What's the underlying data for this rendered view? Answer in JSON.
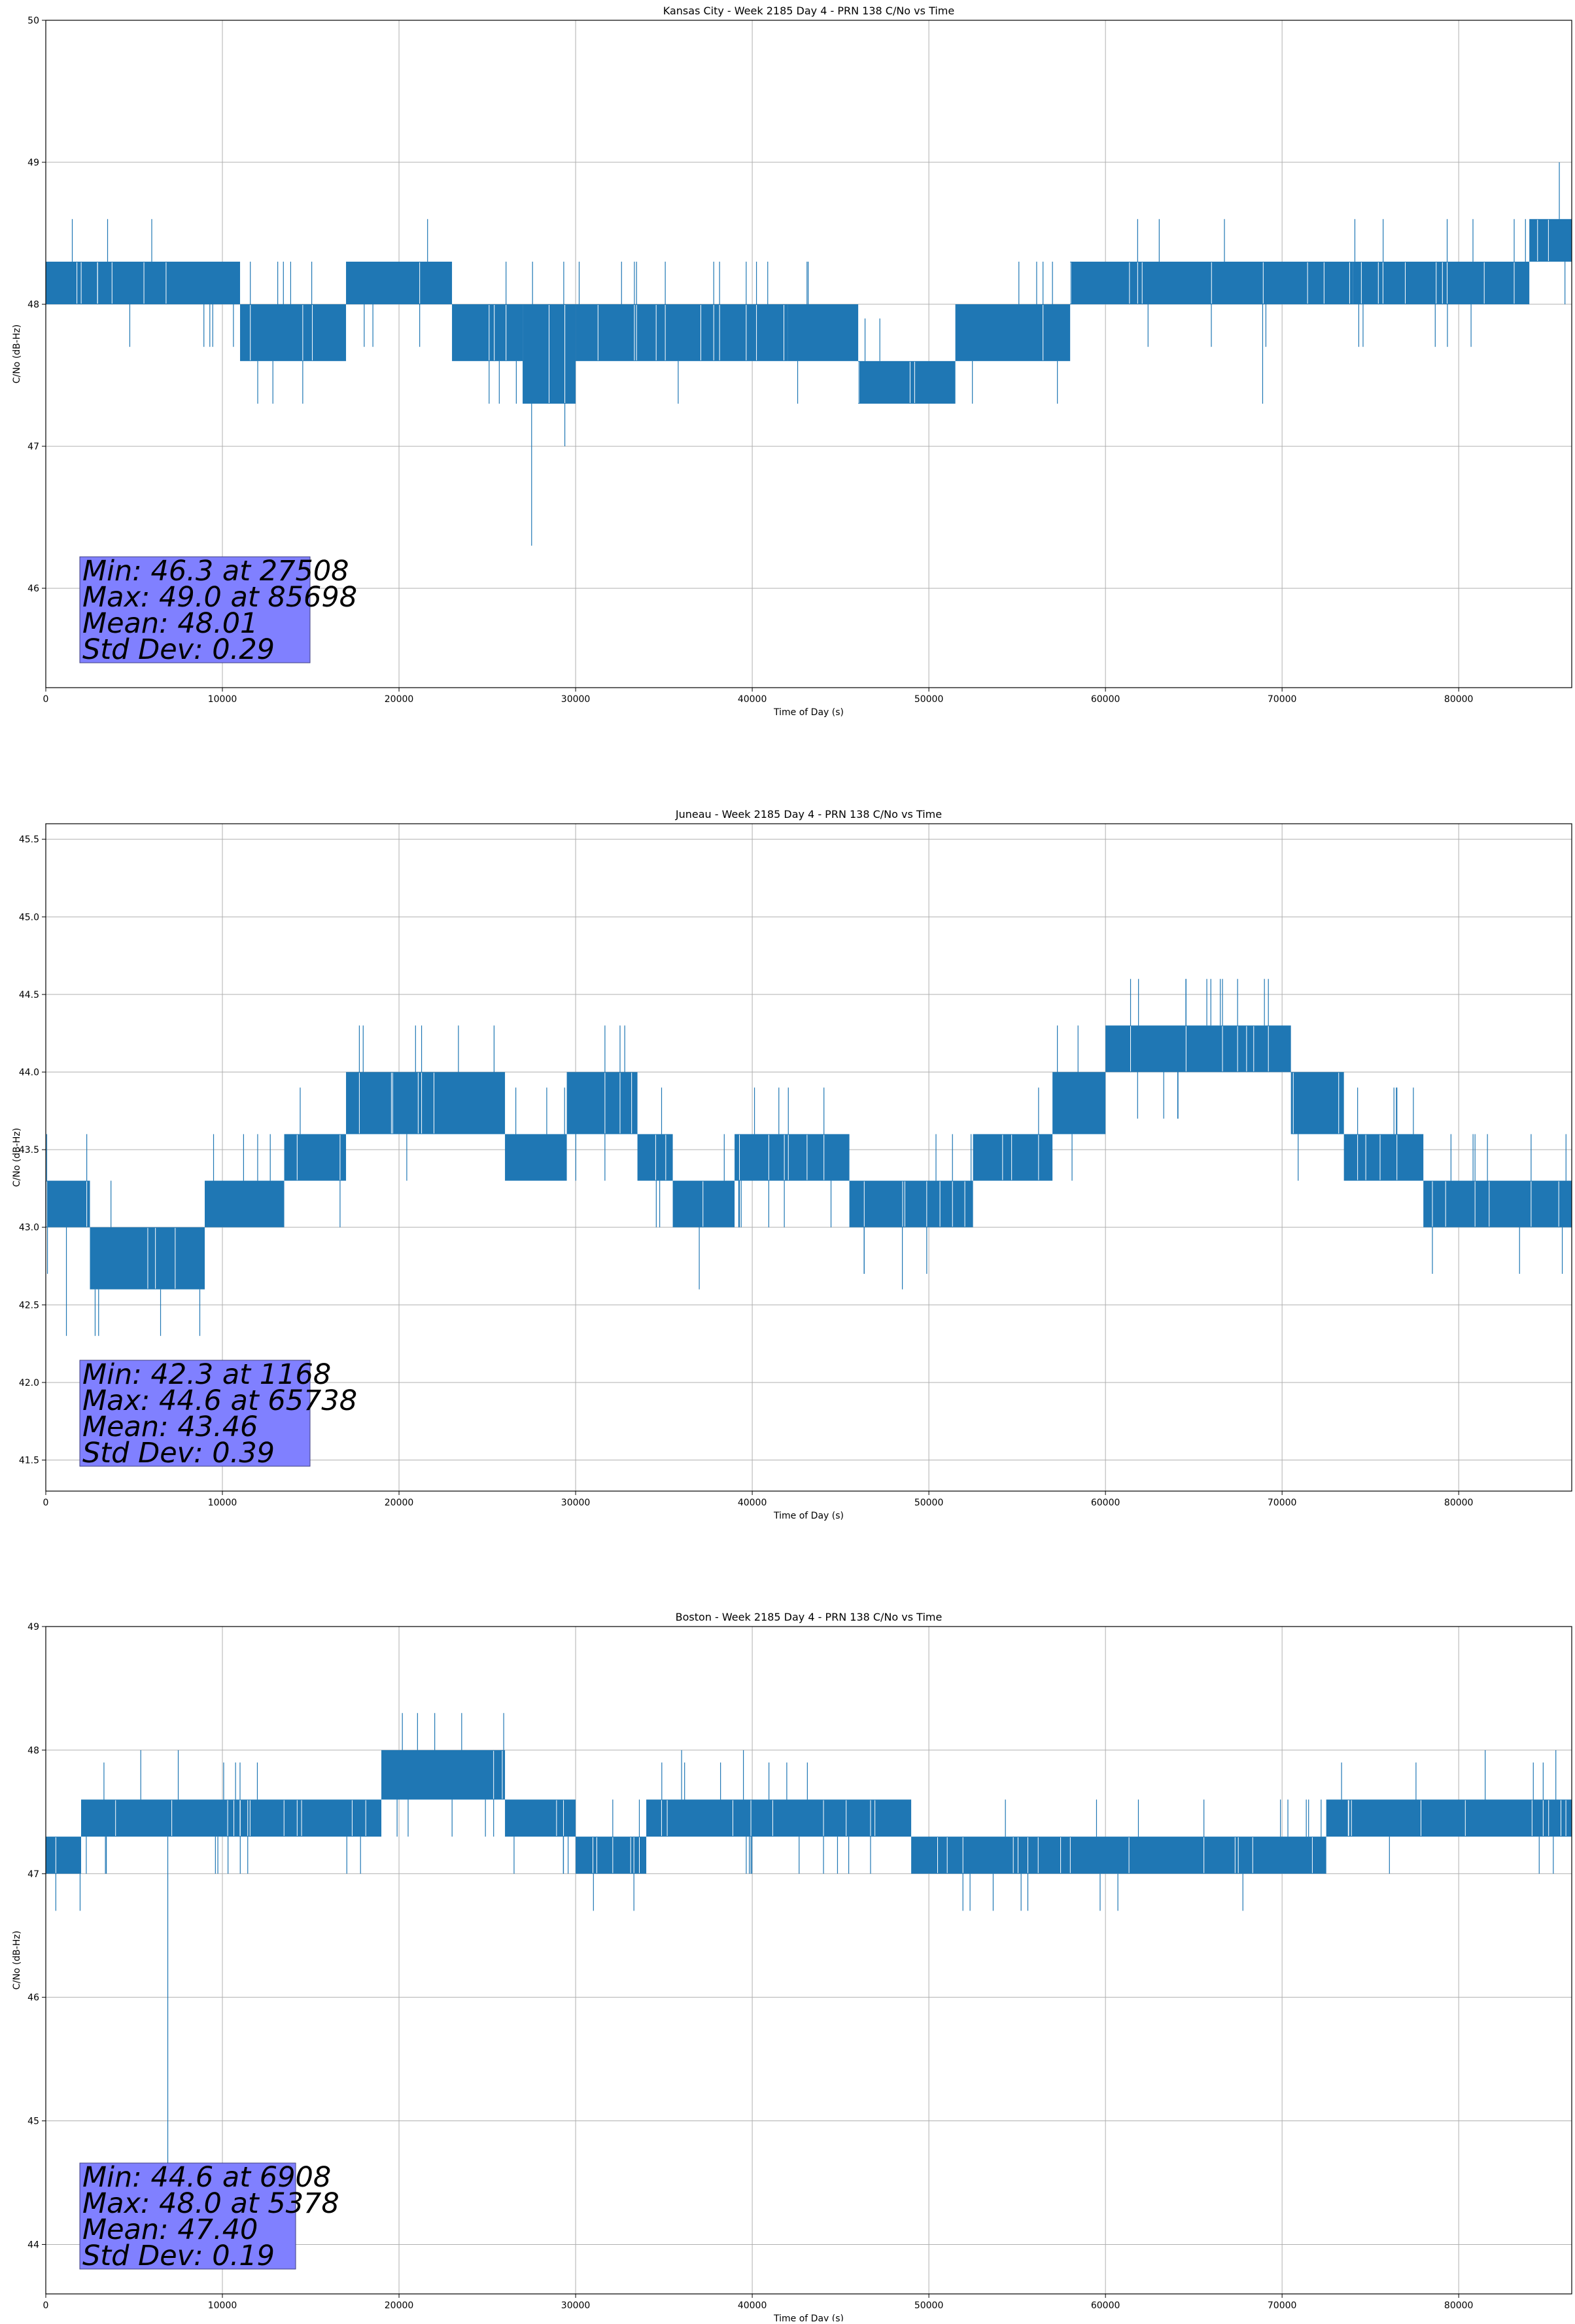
{
  "chart_data": [
    {
      "type": "line",
      "title": "Kansas City - Week 2185 Day 4 - PRN 138 C/No vs Time",
      "xlabel": "Time of Day (s)",
      "ylabel": "C/No (dB-Hz)",
      "xlim": [
        0,
        86400
      ],
      "ylim": [
        45.3,
        50
      ],
      "xticks": [
        0,
        10000,
        20000,
        30000,
        40000,
        50000,
        60000,
        70000,
        80000
      ],
      "yticks": [
        46,
        47,
        48,
        49,
        50
      ],
      "grid": true,
      "line_color": "#1f77b4",
      "levels": [
        {
          "x": [
            0,
            7000
          ],
          "lo": 48.0,
          "hi": 48.3
        },
        {
          "x": [
            7000,
            11000
          ],
          "lo": 48.0,
          "hi": 48.3
        },
        {
          "x": [
            11000,
            17000
          ],
          "lo": 47.6,
          "hi": 48.0
        },
        {
          "x": [
            17000,
            23000
          ],
          "lo": 48.0,
          "hi": 48.3
        },
        {
          "x": [
            23000,
            27000
          ],
          "lo": 47.6,
          "hi": 48.0
        },
        {
          "x": [
            27000,
            30000
          ],
          "lo": 47.3,
          "hi": 48.0
        },
        {
          "x": [
            30000,
            42000
          ],
          "lo": 47.6,
          "hi": 48.0
        },
        {
          "x": [
            42000,
            46000
          ],
          "lo": 47.6,
          "hi": 48.0
        },
        {
          "x": [
            46000,
            51500
          ],
          "lo": 47.3,
          "hi": 47.6
        },
        {
          "x": [
            51500,
            58000
          ],
          "lo": 47.6,
          "hi": 48.0
        },
        {
          "x": [
            58000,
            74000
          ],
          "lo": 48.0,
          "hi": 48.3
        },
        {
          "x": [
            74000,
            84000
          ],
          "lo": 48.0,
          "hi": 48.3
        },
        {
          "x": [
            84000,
            86400
          ],
          "lo": 48.3,
          "hi": 48.6
        }
      ],
      "spikes": [
        {
          "x": 27508,
          "y": 46.3
        },
        {
          "x": 85698,
          "y": 49.0
        },
        {
          "x": 12000,
          "y": 47.3
        },
        {
          "x": 68900,
          "y": 47.3
        },
        {
          "x": 1500,
          "y": 48.6
        },
        {
          "x": 3500,
          "y": 48.6
        },
        {
          "x": 6000,
          "y": 48.6
        }
      ],
      "stats": [
        "Min: 46.3 at 27508",
        "Max: 49.0 at 85698",
        "Mean: 48.01",
        "Std Dev: 0.29"
      ]
    },
    {
      "type": "line",
      "title": "Juneau - Week 2185 Day 4 - PRN 138 C/No vs Time",
      "xlabel": "Time of Day (s)",
      "ylabel": "C/No (dB-Hz)",
      "xlim": [
        0,
        86400
      ],
      "ylim": [
        41.3,
        45.6
      ],
      "xticks": [
        0,
        10000,
        20000,
        30000,
        40000,
        50000,
        60000,
        70000,
        80000
      ],
      "yticks": [
        41.5,
        42.0,
        42.5,
        43.0,
        43.5,
        44.0,
        44.5,
        45.0,
        45.5
      ],
      "grid": true,
      "line_color": "#1f77b4",
      "levels": [
        {
          "x": [
            0,
            2500
          ],
          "lo": 43.0,
          "hi": 43.3
        },
        {
          "x": [
            2500,
            9000
          ],
          "lo": 42.6,
          "hi": 43.0
        },
        {
          "x": [
            9000,
            13500
          ],
          "lo": 43.0,
          "hi": 43.3
        },
        {
          "x": [
            13500,
            17000
          ],
          "lo": 43.3,
          "hi": 43.6
        },
        {
          "x": [
            17000,
            26000
          ],
          "lo": 43.6,
          "hi": 44.0
        },
        {
          "x": [
            26000,
            29500
          ],
          "lo": 43.3,
          "hi": 43.6
        },
        {
          "x": [
            29500,
            33500
          ],
          "lo": 43.6,
          "hi": 44.0
        },
        {
          "x": [
            33500,
            35500
          ],
          "lo": 43.3,
          "hi": 43.6
        },
        {
          "x": [
            35500,
            39000
          ],
          "lo": 43.0,
          "hi": 43.3
        },
        {
          "x": [
            39000,
            45500
          ],
          "lo": 43.3,
          "hi": 43.6
        },
        {
          "x": [
            45500,
            52500
          ],
          "lo": 43.0,
          "hi": 43.3
        },
        {
          "x": [
            52500,
            57000
          ],
          "lo": 43.3,
          "hi": 43.6
        },
        {
          "x": [
            57000,
            60000
          ],
          "lo": 43.6,
          "hi": 44.0
        },
        {
          "x": [
            60000,
            70500
          ],
          "lo": 44.0,
          "hi": 44.3
        },
        {
          "x": [
            70500,
            73500
          ],
          "lo": 43.6,
          "hi": 44.0
        },
        {
          "x": [
            73500,
            78000
          ],
          "lo": 43.3,
          "hi": 43.6
        },
        {
          "x": [
            78000,
            86400
          ],
          "lo": 43.0,
          "hi": 43.3
        }
      ],
      "spikes": [
        {
          "x": 1168,
          "y": 42.3
        },
        {
          "x": 65738,
          "y": 44.6
        },
        {
          "x": 37000,
          "y": 42.6
        },
        {
          "x": 48500,
          "y": 42.6
        },
        {
          "x": 66500,
          "y": 44.6
        },
        {
          "x": 69000,
          "y": 44.6
        },
        {
          "x": 6500,
          "y": 42.3
        }
      ],
      "stats": [
        "Min: 42.3 at 1168",
        "Max: 44.6 at 65738",
        "Mean: 43.46",
        "Std Dev: 0.39"
      ]
    },
    {
      "type": "line",
      "title": "Boston - Week 2185 Day 4 - PRN 138 C/No vs Time",
      "xlabel": "Time of Day (s)",
      "ylabel": "C/No (dB-Hz)",
      "xlim": [
        0,
        86400
      ],
      "ylim": [
        43.6,
        49
      ],
      "xticks": [
        0,
        10000,
        20000,
        30000,
        40000,
        50000,
        60000,
        70000,
        80000
      ],
      "yticks": [
        44,
        45,
        46,
        47,
        48,
        49
      ],
      "grid": true,
      "line_color": "#1f77b4",
      "levels": [
        {
          "x": [
            0,
            2000
          ],
          "lo": 47.0,
          "hi": 47.3
        },
        {
          "x": [
            2000,
            19000
          ],
          "lo": 47.3,
          "hi": 47.6
        },
        {
          "x": [
            19000,
            26000
          ],
          "lo": 47.6,
          "hi": 48.0
        },
        {
          "x": [
            26000,
            30000
          ],
          "lo": 47.3,
          "hi": 47.6
        },
        {
          "x": [
            30000,
            34000
          ],
          "lo": 47.0,
          "hi": 47.3
        },
        {
          "x": [
            34000,
            49000
          ],
          "lo": 47.3,
          "hi": 47.6
        },
        {
          "x": [
            49000,
            72500
          ],
          "lo": 47.0,
          "hi": 47.3
        },
        {
          "x": [
            72500,
            86400
          ],
          "lo": 47.3,
          "hi": 47.6
        }
      ],
      "spikes": [
        {
          "x": 6908,
          "y": 44.6
        },
        {
          "x": 5378,
          "y": 48.0
        },
        {
          "x": 7500,
          "y": 48.0
        },
        {
          "x": 36000,
          "y": 48.0
        },
        {
          "x": 39500,
          "y": 48.0
        },
        {
          "x": 81500,
          "y": 48.0
        },
        {
          "x": 85500,
          "y": 48.0
        }
      ],
      "stats": [
        "Min: 44.6 at 6908",
        "Max: 48.0 at 5378",
        "Mean: 47.40",
        "Std Dev: 0.19"
      ]
    }
  ]
}
